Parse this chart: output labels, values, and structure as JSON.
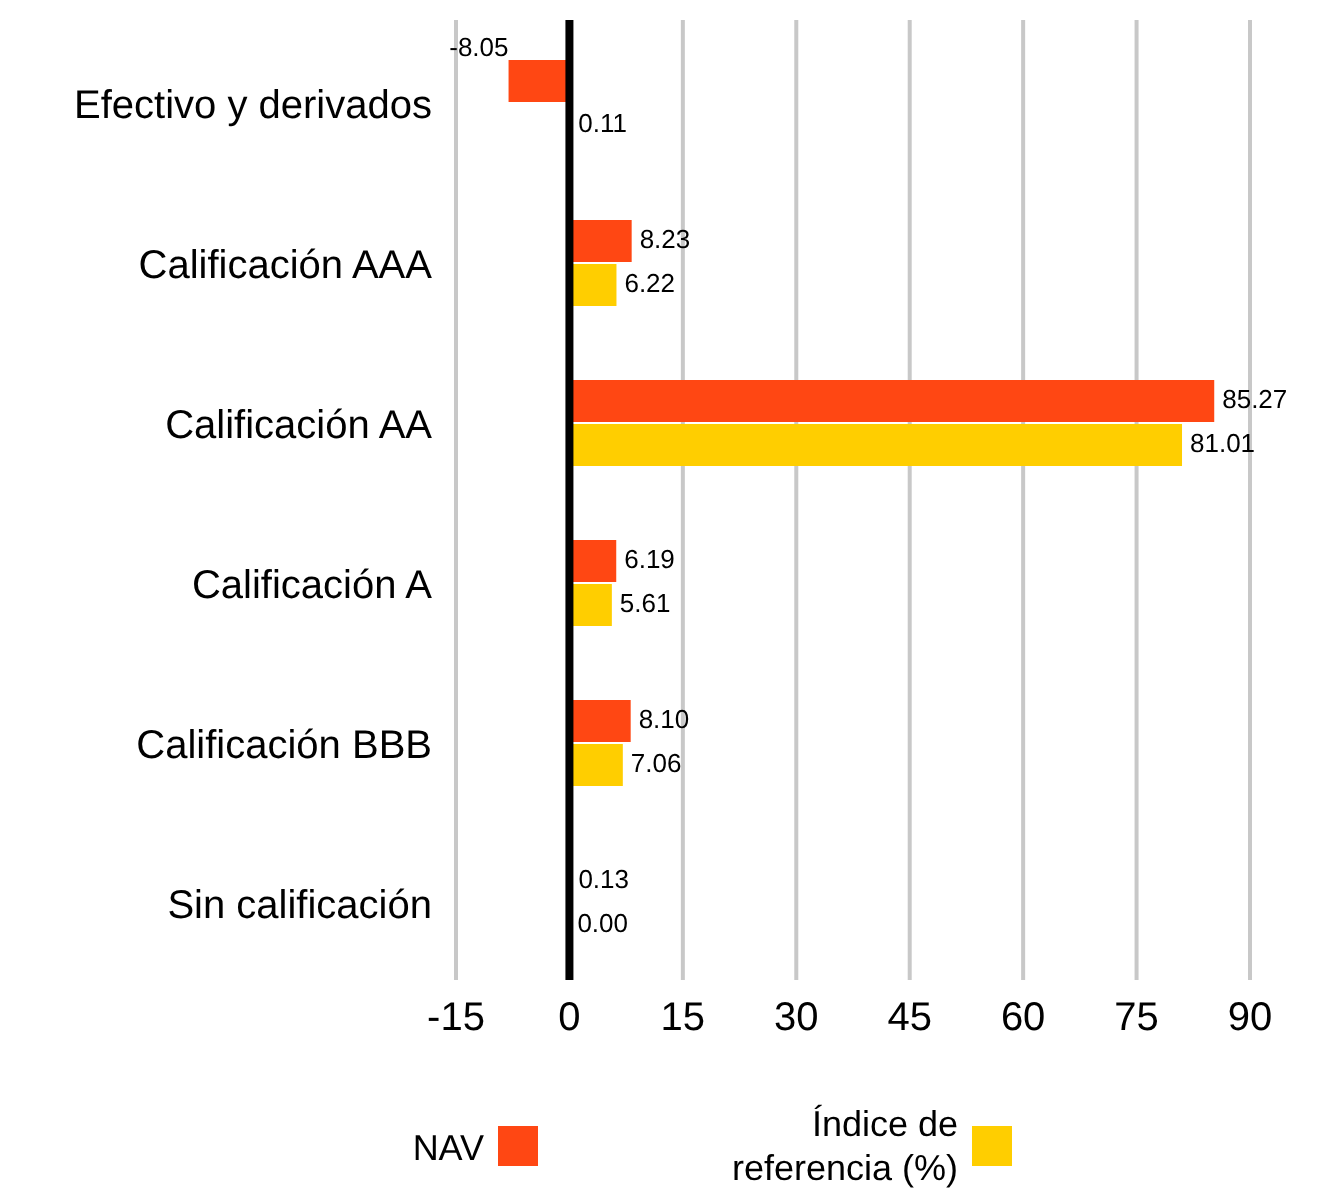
{
  "chart_data": {
    "type": "bar",
    "orientation": "horizontal",
    "categories": [
      "Efectivo y derivados",
      "Calificación AAA",
      "Calificación AA",
      "Calificación A",
      "Calificación BBB",
      "Sin calificación"
    ],
    "series": [
      {
        "name": "NAV",
        "color": "#ff4713",
        "values": [
          -8.05,
          8.23,
          85.27,
          6.19,
          8.1,
          0.13
        ],
        "value_labels": [
          "-8.05",
          "8.23",
          "85.27",
          "6.19",
          "8.10",
          "0.13"
        ]
      },
      {
        "name": "Índice de referencia (%)",
        "color": "#ffce00",
        "values": [
          0.11,
          6.22,
          81.01,
          5.61,
          7.06,
          0
        ],
        "value_labels": [
          "0.11",
          "6.22",
          "81.01",
          "5.61",
          "7.06",
          "0.00"
        ]
      }
    ],
    "xlim": [
      -15,
      90
    ],
    "xticks": [
      -15,
      0,
      15,
      30,
      45,
      60,
      75,
      90
    ],
    "grid": "x",
    "legend": "bottom"
  }
}
